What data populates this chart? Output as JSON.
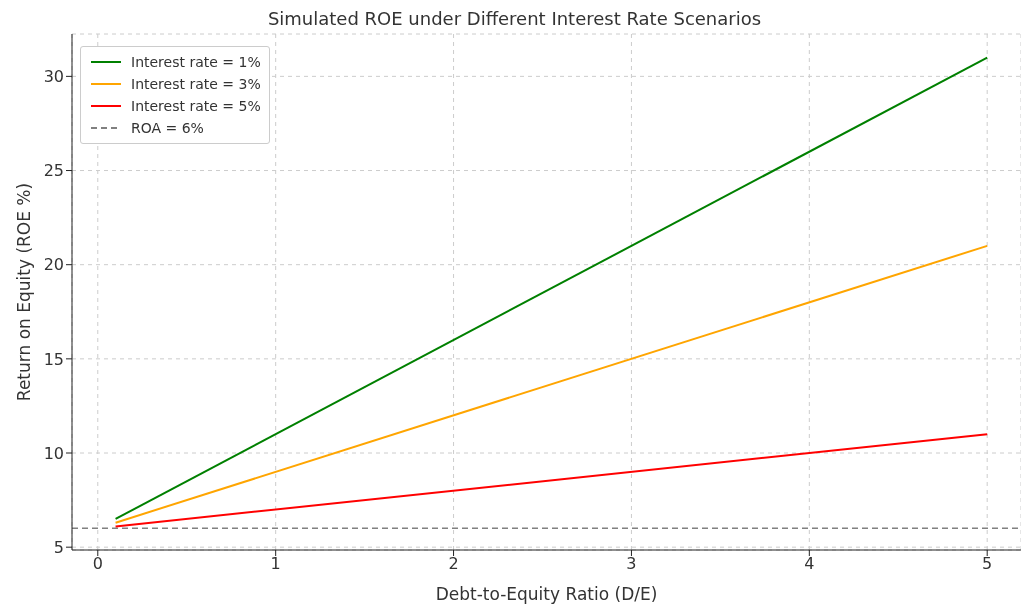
{
  "chart_data": {
    "type": "line",
    "title": "Simulated ROE under Different Interest Rate Scenarios",
    "xlabel": "Debt-to-Equity Ratio (D/E)",
    "ylabel": "Return on Equity (ROE %)",
    "x": [
      0.1,
      5
    ],
    "series": [
      {
        "name": "Interest rate = 1%",
        "color": "#008000",
        "values": [
          6.5,
          31
        ]
      },
      {
        "name": "Interest rate = 3%",
        "color": "#ffa500",
        "values": [
          6.3,
          21
        ]
      },
      {
        "name": "Interest rate = 5%",
        "color": "#ff0000",
        "values": [
          6.1,
          11
        ]
      }
    ],
    "ref_lines": [
      {
        "axis": "y",
        "value": 6,
        "label": "ROA = 6%",
        "color": "#808080",
        "line_style": "dashed"
      }
    ],
    "xlim": [
      -0.145,
      5.19
    ],
    "ylim": [
      4.85,
      32.25
    ],
    "xticks": [
      0,
      1,
      2,
      3,
      4,
      5
    ],
    "yticks": [
      5,
      10,
      15,
      20,
      25,
      30
    ],
    "grid": true,
    "legend": "top left",
    "marker": "none",
    "line_style": "solid"
  }
}
